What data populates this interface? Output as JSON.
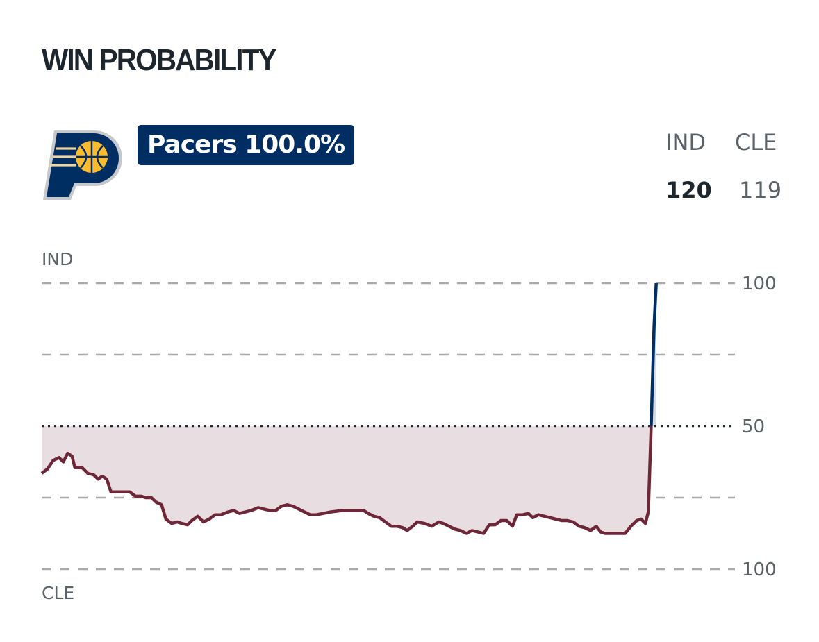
{
  "header": {
    "title": "WIN PROBABILITY"
  },
  "team": {
    "logo_icon": "pacers-logo-icon",
    "badge_text": "Pacers 100.0%",
    "badge_color": "#002d62"
  },
  "scoreboard": {
    "home_abbr": "IND",
    "away_abbr": "CLE",
    "home_score": "120",
    "away_score": "119"
  },
  "chart_data": {
    "type": "area",
    "top_label": "IND",
    "bottom_label": "CLE",
    "y_ticks": [
      {
        "value": 100,
        "label": "100"
      },
      {
        "value": 75,
        "label": ""
      },
      {
        "value": 50,
        "label": "50"
      },
      {
        "value": 25,
        "label": ""
      },
      {
        "value": 0,
        "label": "100"
      }
    ],
    "ylim": [
      0,
      100
    ],
    "xlim": [
      0,
      48
    ],
    "midline": 50,
    "colors": {
      "home": "#002d62",
      "away": "#6d2739",
      "away_fill": "#e8dde1",
      "home_fill": "#d3dbe5",
      "grid": "#a9a9a9"
    },
    "series": {
      "values": [
        [
          0,
          33.5
        ],
        [
          0.4,
          35
        ],
        [
          0.8,
          38
        ],
        [
          1.2,
          39
        ],
        [
          1.5,
          37.5
        ],
        [
          1.8,
          40.5
        ],
        [
          2.1,
          39.5
        ],
        [
          2.3,
          35.5
        ],
        [
          2.8,
          35.5
        ],
        [
          3.2,
          33.5
        ],
        [
          3.6,
          33
        ],
        [
          3.9,
          31.5
        ],
        [
          4.2,
          32.5
        ],
        [
          4.5,
          31.5
        ],
        [
          4.8,
          27
        ],
        [
          5.5,
          27
        ],
        [
          6.1,
          27
        ],
        [
          6.5,
          25.5
        ],
        [
          6.9,
          25.5
        ],
        [
          7.2,
          25
        ],
        [
          7.6,
          25
        ],
        [
          7.9,
          23.5
        ],
        [
          8.3,
          22.5
        ],
        [
          8.6,
          17.5
        ],
        [
          9.0,
          16
        ],
        [
          9.4,
          16.5
        ],
        [
          9.7,
          16
        ],
        [
          10.1,
          15.5
        ],
        [
          10.4,
          17
        ],
        [
          10.8,
          18.5
        ],
        [
          11.2,
          16.5
        ],
        [
          11.6,
          17.5
        ],
        [
          12,
          19
        ],
        [
          12.4,
          19
        ],
        [
          12.9,
          20
        ],
        [
          13.3,
          20.5
        ],
        [
          13.7,
          19.5
        ],
        [
          14.1,
          20
        ],
        [
          14.5,
          20.5
        ],
        [
          15,
          21.5
        ],
        [
          15.4,
          21
        ],
        [
          15.8,
          20.5
        ],
        [
          16.2,
          20.5
        ],
        [
          16.6,
          22
        ],
        [
          17,
          22.5
        ],
        [
          17.4,
          22
        ],
        [
          17.8,
          21
        ],
        [
          18.2,
          20
        ],
        [
          18.6,
          19
        ],
        [
          19,
          19
        ],
        [
          19.5,
          19.5
        ],
        [
          20,
          20
        ],
        [
          20.8,
          20.5
        ],
        [
          22.3,
          20.5
        ],
        [
          22.6,
          19.5
        ],
        [
          23,
          18.5
        ],
        [
          23.4,
          18
        ],
        [
          23.8,
          16.5
        ],
        [
          24.2,
          15
        ],
        [
          24.6,
          15
        ],
        [
          25,
          14.5
        ],
        [
          25.3,
          13.5
        ],
        [
          25.7,
          15
        ],
        [
          26,
          16.5
        ],
        [
          26.5,
          16
        ],
        [
          27,
          15
        ],
        [
          27.5,
          16.5
        ],
        [
          27.8,
          16
        ],
        [
          28.2,
          15
        ],
        [
          28.6,
          14
        ],
        [
          29,
          13.5
        ],
        [
          29.4,
          12.5
        ],
        [
          29.8,
          13.5
        ],
        [
          30.2,
          13
        ],
        [
          30.6,
          12.5
        ],
        [
          31,
          15.5
        ],
        [
          31.4,
          15.5
        ],
        [
          31.8,
          17
        ],
        [
          32.2,
          17
        ],
        [
          32.6,
          15
        ],
        [
          32.9,
          19
        ],
        [
          33.3,
          19
        ],
        [
          33.7,
          19.5
        ],
        [
          34,
          18
        ],
        [
          34.4,
          19
        ],
        [
          34.8,
          18.5
        ],
        [
          35.2,
          18
        ],
        [
          35.6,
          17.5
        ],
        [
          36,
          17
        ],
        [
          36.4,
          17
        ],
        [
          36.8,
          16.5
        ],
        [
          37.2,
          15
        ],
        [
          37.6,
          14.5
        ],
        [
          38,
          13.5
        ],
        [
          38.4,
          15
        ],
        [
          38.7,
          13
        ],
        [
          39,
          12.5
        ],
        [
          39.5,
          12.5
        ],
        [
          40,
          12.5
        ],
        [
          40.4,
          12.5
        ],
        [
          40.8,
          15
        ],
        [
          41.2,
          17
        ],
        [
          41.5,
          17.5
        ],
        [
          41.8,
          16
        ],
        [
          42.0,
          20
        ],
        [
          42.2,
          50
        ],
        [
          42.4,
          85
        ],
        [
          42.55,
          100
        ]
      ]
    }
  }
}
